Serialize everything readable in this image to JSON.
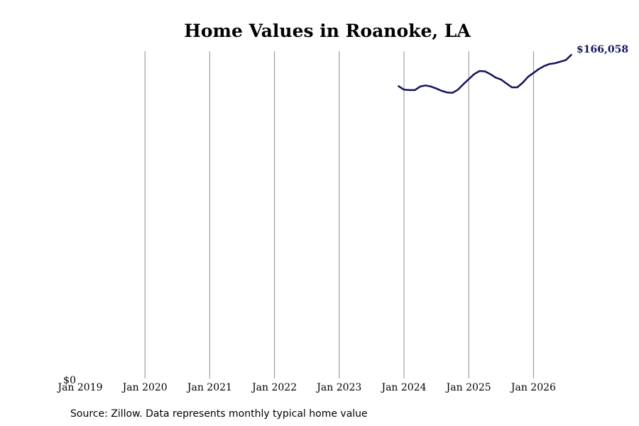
{
  "chart_data": {
    "type": "line",
    "title": "Home Values in Roanoke, LA",
    "xlabel": "",
    "ylabel": "",
    "x_ticks": [
      "Jan 2019",
      "Jan 2020",
      "Jan 2021",
      "Jan 2022",
      "Jan 2023",
      "Jan 2024",
      "Jan 2025",
      "Jan 2026"
    ],
    "y_ticks": [
      "$0"
    ],
    "xlim": [
      "2019-01",
      "2026-07"
    ],
    "ylim": [
      0,
      168000
    ],
    "grid": "vertical",
    "line_color": "#13125e",
    "end_label": "$166,058",
    "series": [
      {
        "x": [
          "2023-12",
          "2024-01",
          "2024-02",
          "2024-03",
          "2024-04",
          "2024-05",
          "2024-06",
          "2024-07",
          "2024-08",
          "2024-09",
          "2024-10",
          "2024-11",
          "2024-12",
          "2025-01",
          "2025-02",
          "2025-03",
          "2025-04",
          "2025-05",
          "2025-06",
          "2025-07",
          "2025-08",
          "2025-09",
          "2025-10",
          "2025-11",
          "2025-12",
          "2026-01",
          "2026-02",
          "2026-03",
          "2026-04",
          "2026-05",
          "2026-06",
          "2026-07",
          "2026-08"
        ],
        "values": [
          150000,
          148200,
          148000,
          148000,
          149800,
          150400,
          149800,
          148800,
          147600,
          146800,
          146600,
          148200,
          151000,
          153600,
          156200,
          157800,
          157600,
          156200,
          154400,
          153400,
          151400,
          149400,
          149400,
          151800,
          154800,
          156800,
          158800,
          160400,
          161400,
          161800,
          162600,
          163400,
          166058
        ]
      }
    ]
  },
  "source_note": "Source: Zillow. Data represents monthly typical home value"
}
